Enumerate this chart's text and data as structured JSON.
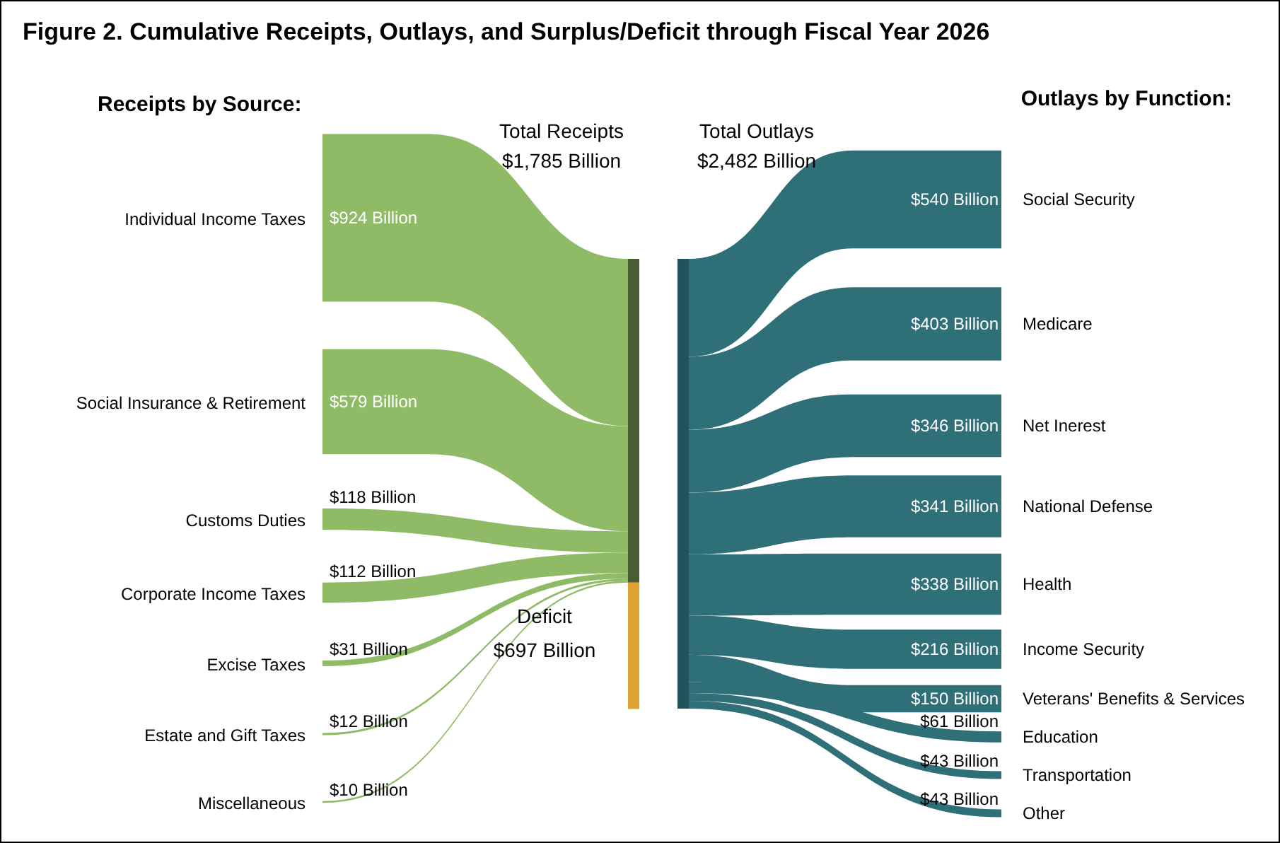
{
  "chart_data": {
    "type": "other",
    "title": "Figure 2. Cumulative Receipts, Outlays, and Surplus/Deficit through Fiscal Year 2026",
    "categories": [
      "Individual Income Taxes",
      "Social Insurance & Retirement",
      "Customs Duties",
      "Corporate Income Taxes",
      "Excise Taxes",
      "Estate and Gift Taxes",
      "Miscellaneous",
      "Deficit",
      "Social Security",
      "Medicare",
      "Net Inerest",
      "National Defense",
      "Health",
      "Income Security",
      "Veterans' Benefits & Services",
      "Education",
      "Transportation",
      "Other"
    ],
    "series": [
      {
        "name": "Receipts by Source:",
        "color": "#8fba66",
        "values": [
          924,
          579,
          118,
          112,
          31,
          12,
          10,
          null,
          null,
          null,
          null,
          null,
          null,
          null,
          null,
          null,
          null,
          null
        ],
        "value_labels": [
          "$924 Billion",
          "$579 Billion",
          "$118 Billion",
          "$112 Billion",
          "$31 Billion",
          "$12 Billion",
          "$10 Billion",
          null,
          null,
          null,
          null,
          null,
          null,
          null,
          null,
          null,
          null,
          null
        ]
      },
      {
        "color": "#e0a435",
        "values": [
          null,
          null,
          null,
          null,
          null,
          null,
          null,
          697,
          null,
          null,
          null,
          null,
          null,
          null,
          null,
          null,
          null,
          null
        ],
        "value_labels": [
          null,
          null,
          null,
          null,
          null,
          null,
          null,
          "$697 Billion",
          null,
          null,
          null,
          null,
          null,
          null,
          null,
          null,
          null,
          null
        ]
      },
      {
        "name": "Outlays by Function:",
        "color": "#2e6f78",
        "values": [
          null,
          null,
          null,
          null,
          null,
          null,
          null,
          null,
          540,
          403,
          346,
          341,
          338,
          216,
          150,
          61,
          43,
          43
        ],
        "value_labels": [
          null,
          null,
          null,
          null,
          null,
          null,
          null,
          null,
          "$540 Billion",
          "$403 Billion",
          "$346 Billion",
          "$341 Billion",
          "$338 Billion",
          "$216 Billion",
          "$150 Billion",
          "$61 Billion",
          "$43 Billion",
          "$43 Billion"
        ]
      }
    ],
    "annotations": [
      "Total Receipts\n$1,785 Billion",
      "Total Outlays\n$2,482 Billion"
    ]
  }
}
